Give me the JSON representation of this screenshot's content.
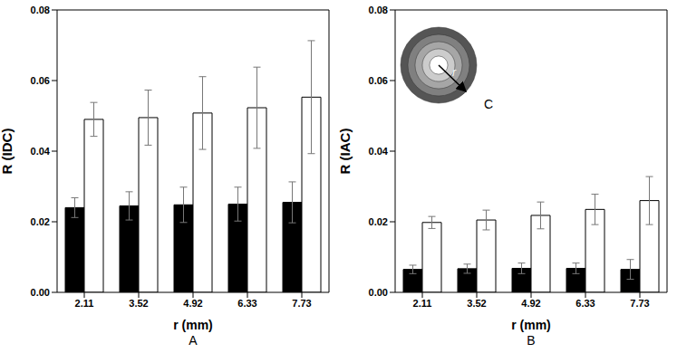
{
  "chart_data": [
    {
      "type": "bar",
      "panel": "A",
      "x_label": "r (mm)",
      "y_label": "R (IDC)",
      "categories": [
        "2.11",
        "3.52",
        "4.92",
        "6.33",
        "7.73"
      ],
      "ylim": [
        0,
        0.08
      ],
      "yticks": [
        {
          "value": 0,
          "label": "0.00"
        },
        0.02,
        0.04,
        0.06,
        0.08
      ],
      "grid": false,
      "series": [
        {
          "color": "#000000",
          "values": [
            0.024,
            0.0245,
            0.0248,
            0.025,
            0.0255
          ],
          "errors": [
            0.0028,
            0.004,
            0.005,
            0.0048,
            0.0058
          ]
        },
        {
          "color": "#ffffff",
          "values": [
            0.049,
            0.0495,
            0.0508,
            0.0523,
            0.0553
          ],
          "errors": [
            0.0048,
            0.0078,
            0.0103,
            0.0115,
            0.016
          ]
        }
      ]
    },
    {
      "type": "bar",
      "panel": "B",
      "x_label": "r (mm)",
      "y_label": "R (IAC)",
      "categories": [
        "2.11",
        "3.52",
        "4.92",
        "6.33",
        "7.73"
      ],
      "ylim": [
        0,
        0.08
      ],
      "yticks": [
        {
          "value": 0,
          "label": "0.00"
        },
        0.02,
        0.04,
        0.06,
        0.08
      ],
      "grid": false,
      "annotations": [
        "r",
        "C"
      ],
      "series": [
        {
          "color": "#000000",
          "values": [
            0.0065,
            0.0067,
            0.0068,
            0.0068,
            0.0065
          ],
          "errors": [
            0.0012,
            0.0013,
            0.0015,
            0.0015,
            0.0028
          ]
        },
        {
          "color": "#ffffff",
          "values": [
            0.0198,
            0.0205,
            0.0218,
            0.0235,
            0.026
          ],
          "errors": [
            0.0017,
            0.0028,
            0.0038,
            0.0043,
            0.0068
          ]
        }
      ]
    }
  ]
}
